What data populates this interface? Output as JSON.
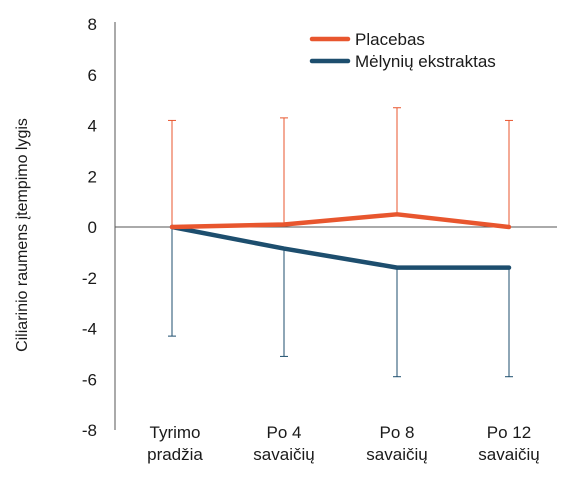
{
  "chart_data": {
    "type": "line",
    "ylabel": "Ciliarinio raumens įtempimo lygis",
    "ylim": [
      -8,
      8
    ],
    "yticks": [
      8,
      6,
      4,
      2,
      0,
      -2,
      -4,
      -6,
      -8
    ],
    "categories": [
      [
        "Tyrimo",
        "pradžia"
      ],
      [
        "Po 4",
        "savaičių"
      ],
      [
        "Po 8",
        "savaičių"
      ],
      [
        "Po 12",
        "savaičių"
      ]
    ],
    "series": [
      {
        "name": "Placebas",
        "color": "#e8562e",
        "values": [
          0,
          0.1,
          0.5,
          0
        ],
        "error_upper": [
          4.2,
          4.3,
          4.7,
          4.2
        ],
        "error_lower": [
          0,
          0.1,
          0.5,
          0
        ]
      },
      {
        "name": "Mėlynių ekstraktas",
        "color": "#1d4e6e",
        "values": [
          0,
          -0.85,
          -1.6,
          -1.6
        ],
        "error_upper": [
          0,
          -0.85,
          -1.6,
          -1.6
        ],
        "error_lower": [
          -4.3,
          -5.1,
          -5.9,
          -5.9
        ]
      }
    ],
    "grid": false,
    "legend": "top-right"
  }
}
